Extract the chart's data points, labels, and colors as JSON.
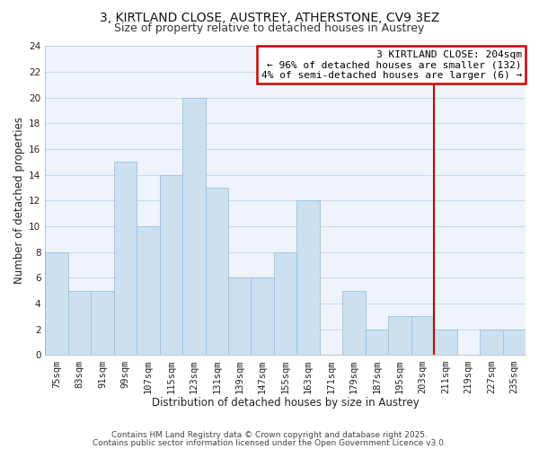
{
  "title": "3, KIRTLAND CLOSE, AUSTREY, ATHERSTONE, CV9 3EZ",
  "subtitle": "Size of property relative to detached houses in Austrey",
  "xlabel": "Distribution of detached houses by size in Austrey",
  "ylabel": "Number of detached properties",
  "categories": [
    "75sqm",
    "83sqm",
    "91sqm",
    "99sqm",
    "107sqm",
    "115sqm",
    "123sqm",
    "131sqm",
    "139sqm",
    "147sqm",
    "155sqm",
    "163sqm",
    "171sqm",
    "179sqm",
    "187sqm",
    "195sqm",
    "203sqm",
    "211sqm",
    "219sqm",
    "227sqm",
    "235sqm"
  ],
  "values": [
    8,
    5,
    5,
    15,
    10,
    14,
    20,
    13,
    6,
    6,
    8,
    12,
    0,
    5,
    2,
    3,
    3,
    2,
    0,
    2,
    2
  ],
  "bar_color": "#cce0f0",
  "bar_edge_color": "#99c0e0",
  "vline_x_index": 16,
  "vline_color": "#cc0000",
  "annotation_title": "3 KIRTLAND CLOSE: 204sqm",
  "annotation_line1": "← 96% of detached houses are smaller (132)",
  "annotation_line2": "4% of semi-detached houses are larger (6) →",
  "annotation_box_color": "#cc0000",
  "ylim": [
    0,
    24
  ],
  "yticks": [
    0,
    2,
    4,
    6,
    8,
    10,
    12,
    14,
    16,
    18,
    20,
    22,
    24
  ],
  "grid_color": "#c8d8e8",
  "footer1": "Contains HM Land Registry data © Crown copyright and database right 2025.",
  "footer2": "Contains public sector information licensed under the Open Government Licence v3.0.",
  "title_fontsize": 10,
  "subtitle_fontsize": 9,
  "xlabel_fontsize": 8.5,
  "ylabel_fontsize": 8.5,
  "tick_fontsize": 7.5,
  "annotation_fontsize": 8,
  "footer_fontsize": 6.5
}
